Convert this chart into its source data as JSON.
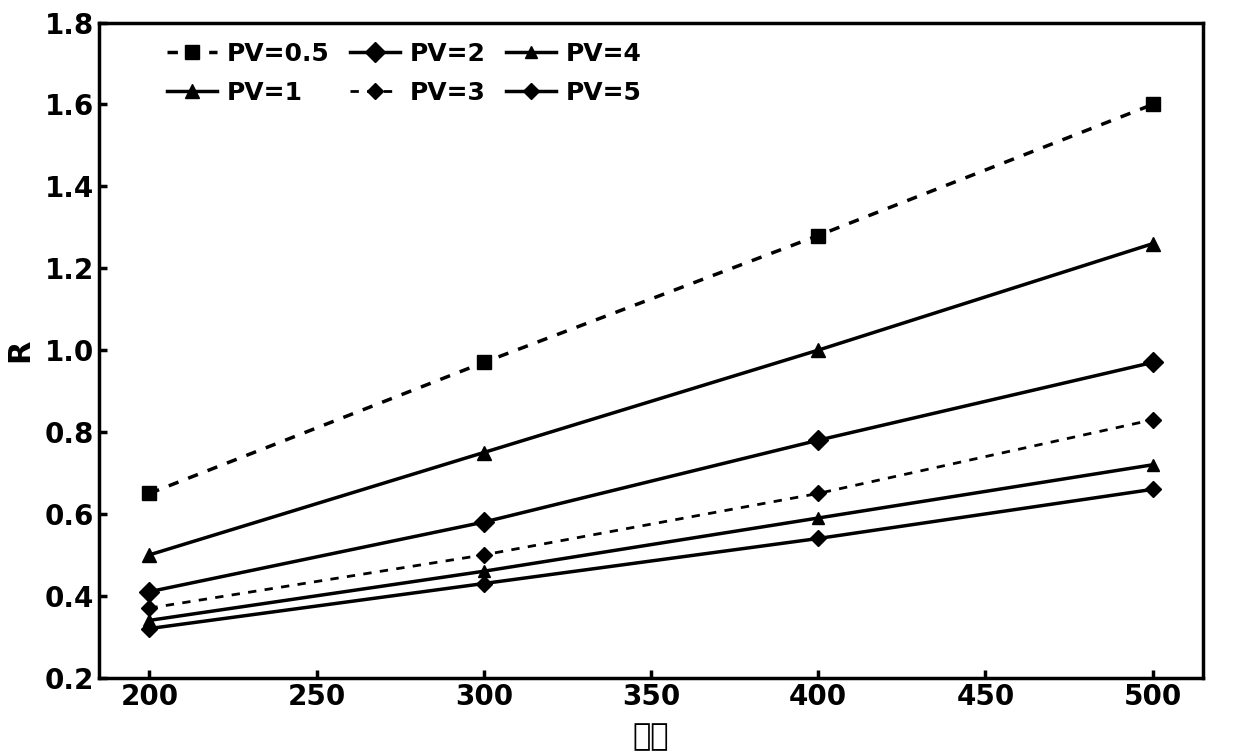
{
  "x": [
    200,
    300,
    400,
    500
  ],
  "series": [
    {
      "label": "PV=0.5",
      "y": [
        0.65,
        0.97,
        1.28,
        1.6
      ],
      "linestyle": "dotted",
      "marker": "s",
      "linewidth": 2.5,
      "markersize": 10
    },
    {
      "label": "PV=1",
      "y": [
        0.5,
        0.75,
        1.0,
        1.26
      ],
      "linestyle": "solid",
      "marker": "^",
      "linewidth": 2.5,
      "markersize": 10
    },
    {
      "label": "PV=2",
      "y": [
        0.41,
        0.58,
        0.78,
        0.97
      ],
      "linestyle": "solid",
      "marker": "D",
      "linewidth": 2.5,
      "markersize": 10
    },
    {
      "label": "PV=3",
      "y": [
        0.37,
        0.5,
        0.65,
        0.83
      ],
      "linestyle": "dotted",
      "marker": "D",
      "linewidth": 2.0,
      "markersize": 8
    },
    {
      "label": "PV=4",
      "y": [
        0.34,
        0.46,
        0.59,
        0.72
      ],
      "linestyle": "solid",
      "marker": "^",
      "linewidth": 2.5,
      "markersize": 8
    },
    {
      "label": "PV=5",
      "y": [
        0.32,
        0.43,
        0.54,
        0.66
      ],
      "linestyle": "solid",
      "marker": "D",
      "linewidth": 2.5,
      "markersize": 8
    }
  ],
  "xlabel": "井距",
  "ylabel": "R",
  "xlim": [
    185,
    515
  ],
  "ylim": [
    0.2,
    1.8
  ],
  "xticks": [
    200,
    250,
    300,
    350,
    400,
    450,
    500
  ],
  "yticks": [
    0.2,
    0.4,
    0.6,
    0.8,
    1.0,
    1.2,
    1.4,
    1.6,
    1.8
  ],
  "axis_fontsize": 22,
  "tick_fontsize": 20,
  "legend_fontsize": 18,
  "background_color": "#ffffff",
  "color": "#000000"
}
